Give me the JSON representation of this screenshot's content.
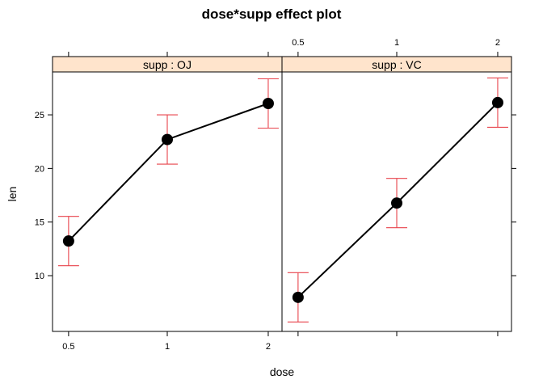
{
  "chart_data": {
    "type": "line",
    "title": "dose*supp effect plot",
    "xlabel": "dose",
    "ylabel": "len",
    "x_ticks": [
      "0.5",
      "1",
      "2"
    ],
    "y_ticks": [
      10,
      15,
      20,
      25
    ],
    "ylim": [
      4.8,
      29.0
    ],
    "colors": {
      "line": "#000000",
      "point": "#000000",
      "error_bar": "#e8434b",
      "strip_fill": "#ffe4cc"
    },
    "panels": [
      {
        "strip": "supp : OJ",
        "points": [
          {
            "x": "0.5",
            "y": 13.23,
            "lower": 10.93,
            "upper": 15.53
          },
          {
            "x": "1",
            "y": 22.7,
            "lower": 20.4,
            "upper": 25.0
          },
          {
            "x": "2",
            "y": 26.06,
            "lower": 23.76,
            "upper": 28.36
          }
        ]
      },
      {
        "strip": "supp : VC",
        "points": [
          {
            "x": "0.5",
            "y": 7.98,
            "lower": 5.68,
            "upper": 10.28
          },
          {
            "x": "1",
            "y": 16.77,
            "lower": 14.47,
            "upper": 19.07
          },
          {
            "x": "2",
            "y": 26.14,
            "lower": 23.84,
            "upper": 28.44
          }
        ]
      }
    ]
  }
}
